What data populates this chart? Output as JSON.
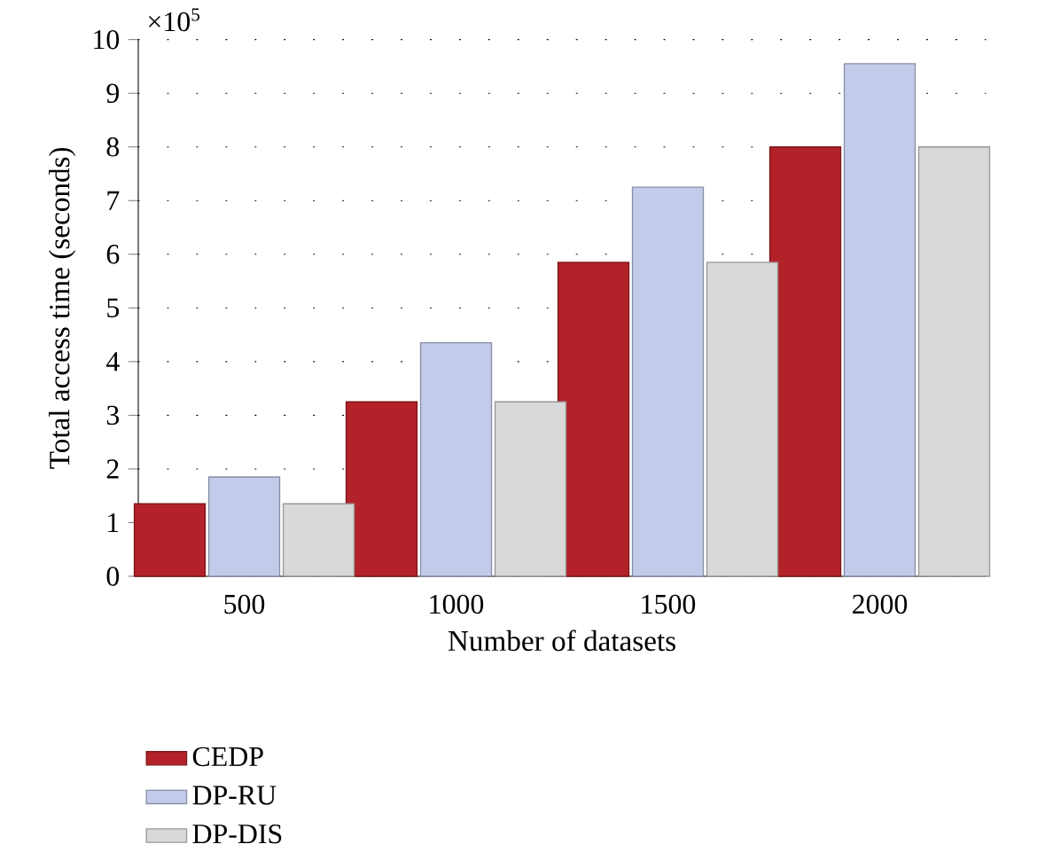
{
  "chart_data": {
    "type": "bar",
    "xlabel": "Number of datasets",
    "ylabel": "Total access time (seconds)",
    "categories": [
      "500",
      "1000",
      "1500",
      "2000"
    ],
    "series": [
      {
        "name": "CEDP",
        "color": "#b22228",
        "values": [
          1.35,
          3.25,
          5.85,
          8.0
        ]
      },
      {
        "name": "DP-RU",
        "color": "#c3cbea",
        "values": [
          1.85,
          4.35,
          7.25,
          9.55
        ]
      },
      {
        "name": "DP-DIS",
        "color": "#d9d9d9",
        "values": [
          1.35,
          3.25,
          5.85,
          8.0
        ]
      }
    ],
    "ylim": [
      0,
      10
    ],
    "yticks": [
      0,
      1,
      2,
      3,
      4,
      5,
      6,
      7,
      8,
      9,
      10
    ],
    "grid": "y",
    "legend": "bottom left",
    "annotations": [
      "×10$^{5}$"
    ]
  }
}
